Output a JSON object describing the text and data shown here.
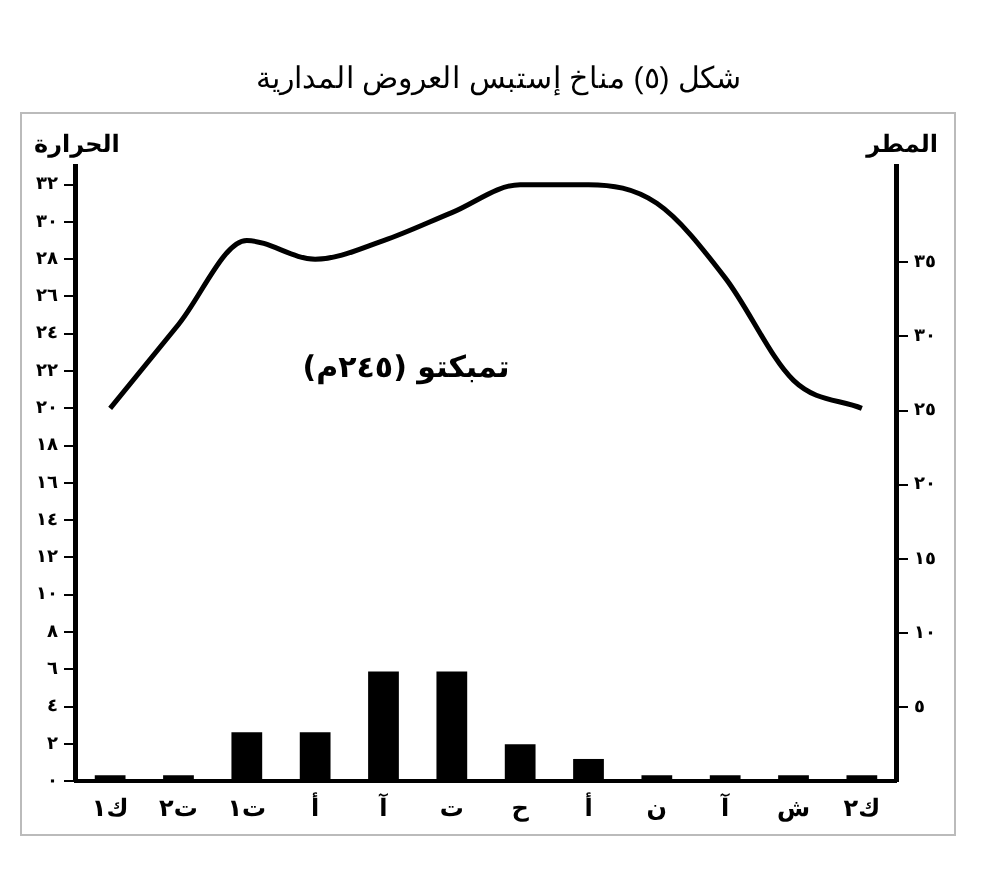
{
  "chart_data": {
    "type": "bar",
    "title": "شكل (٥) مناخ إستبس العروض المدارية",
    "ylabel": "الحرارة",
    "y2label": "المطر",
    "annotations": [
      "تمبكتو (٢٤٥م)"
    ],
    "categories": [
      "ك١",
      "ت٢",
      "ت١",
      "أ",
      "آ",
      "ت",
      "ح",
      "أ",
      "ن",
      "آ",
      "ش",
      "ك٢"
    ],
    "series": [
      {
        "type": "line",
        "color": "#000000",
        "axis": "y",
        "values": [
          20,
          24.5,
          29,
          28,
          29,
          30.5,
          32,
          32,
          31,
          27,
          21.5,
          20
        ]
      },
      {
        "color": "#000000",
        "axis": "y2",
        "values": [
          0.4,
          0.4,
          3.3,
          3.3,
          7.4,
          7.4,
          2.5,
          1.5,
          0.4,
          0.4,
          0.4,
          0.4
        ]
      }
    ],
    "ylim": [
      0,
      33
    ],
    "yticks": [
      {
        "value": 0,
        "label": "٠"
      },
      {
        "value": 2,
        "label": "٢"
      },
      {
        "value": 4,
        "label": "٤"
      },
      {
        "value": 6,
        "label": "٦"
      },
      {
        "value": 8,
        "label": "٨"
      },
      {
        "value": 10,
        "label": "١٠"
      },
      {
        "value": 12,
        "label": "١٢"
      },
      {
        "value": 14,
        "label": "١٤"
      },
      {
        "value": 16,
        "label": "١٦"
      },
      {
        "value": 18,
        "label": "١٨"
      },
      {
        "value": 20,
        "label": "٢٠"
      },
      {
        "value": 22,
        "label": "٢٢"
      },
      {
        "value": 24,
        "label": "٢٤"
      },
      {
        "value": 26,
        "label": "٢٦"
      },
      {
        "value": 28,
        "label": "٢٨"
      },
      {
        "value": 30,
        "label": "٣٠"
      },
      {
        "value": 32,
        "label": "٣٢"
      }
    ],
    "y2lim": [
      0,
      41.5
    ],
    "y2ticks": [
      {
        "value": 5,
        "label": "٥"
      },
      {
        "value": 10,
        "label": "١٠"
      },
      {
        "value": 15,
        "label": "١٥"
      },
      {
        "value": 20,
        "label": "٢٠"
      },
      {
        "value": 25,
        "label": "٢٥"
      },
      {
        "value": 30,
        "label": "٣٠"
      },
      {
        "value": 35,
        "label": "٣٥"
      }
    ],
    "marker": "none",
    "line_style": "solid",
    "grid": false,
    "legend": false
  }
}
